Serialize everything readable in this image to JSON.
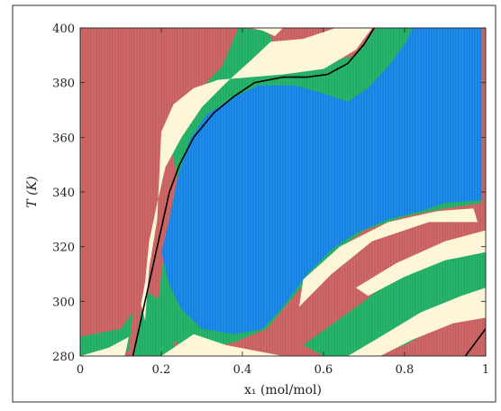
{
  "chart_data": {
    "type": "heatmap",
    "title": "",
    "xlabel": "x₁ (mol/mol)",
    "ylabel": "T (K)",
    "xlim": [
      0,
      1
    ],
    "ylim": [
      280,
      400
    ],
    "x_ticks": [
      0,
      0.2,
      0.4,
      0.6,
      0.8,
      1
    ],
    "x_tick_labels": [
      "0",
      "0.2",
      "0.4",
      "0.6",
      "0.8",
      "1"
    ],
    "y_ticks": [
      280,
      300,
      320,
      340,
      360,
      380,
      400
    ],
    "y_tick_labels": [
      "280",
      "300",
      "320",
      "340",
      "360",
      "380",
      "400"
    ],
    "grid": false,
    "legend": "none",
    "colors": {
      "region_red": "#c96060",
      "region_cream": "#fdf5d8",
      "region_green": "#1fae63",
      "region_blue": "#1683e4",
      "curve": "#000000"
    },
    "regions": {
      "red": [
        [
          [
            0,
            400
          ],
          [
            0.39,
            400
          ],
          [
            0.34,
            394
          ],
          [
            0.28,
            385
          ],
          [
            0.22,
            374
          ],
          [
            0.18,
            362
          ],
          [
            0.17,
            348
          ],
          [
            0.15,
            330
          ],
          [
            0.13,
            312
          ],
          [
            0.1,
            300
          ],
          [
            0.05,
            294
          ],
          [
            0,
            291
          ]
        ],
        [
          [
            0.38,
            284.5
          ],
          [
            0.43,
            285.2
          ],
          [
            0.46,
            284.6
          ],
          [
            0.42,
            283.6
          ]
        ],
        [
          [
            0.67,
            298.8
          ],
          [
            0.72,
            301.2
          ],
          [
            0.7,
            300
          ]
        ]
      ],
      "green": [
        [
          [
            0.39,
            400
          ],
          [
            0.46,
            399
          ],
          [
            0.48,
            394
          ],
          [
            0.52,
            389
          ],
          [
            0.6,
            387
          ],
          [
            0.68,
            390
          ],
          [
            0.72,
            398
          ],
          [
            0.73,
            400
          ],
          [
            0.98,
            400
          ],
          [
            0.99,
            336
          ],
          [
            0.9,
            334
          ],
          [
            0.8,
            331
          ],
          [
            0.7,
            326
          ],
          [
            0.62,
            317
          ],
          [
            0.55,
            306
          ],
          [
            0.46,
            290
          ],
          [
            0.38,
            285
          ],
          [
            0.28,
            282
          ],
          [
            0.22,
            286
          ],
          [
            0.19,
            296
          ],
          [
            0.2,
            310
          ],
          [
            0.22,
            330
          ],
          [
            0.24,
            345
          ],
          [
            0.22,
            360
          ],
          [
            0.26,
            372
          ],
          [
            0.35,
            386
          ]
        ],
        [
          [
            0.7,
            300
          ],
          [
            0.8,
            312
          ],
          [
            0.9,
            320
          ],
          [
            1,
            323
          ],
          [
            1,
            300
          ],
          [
            0.9,
            292
          ],
          [
            0.8,
            284
          ],
          [
            0.72,
            280
          ],
          [
            0.6,
            280
          ],
          [
            0.55,
            284
          ]
        ],
        [
          [
            0,
            287
          ],
          [
            0.1,
            290
          ],
          [
            0.13,
            296
          ],
          [
            0.12,
            282
          ],
          [
            0.05,
            280
          ],
          [
            0,
            280
          ]
        ],
        [
          [
            0.13,
            280
          ],
          [
            0.16,
            304
          ],
          [
            0.2,
            300
          ],
          [
            0.22,
            290
          ],
          [
            0.24,
            280
          ]
        ]
      ],
      "cream": [
        [
          [
            0.2,
            362
          ],
          [
            0.23,
            372
          ],
          [
            0.28,
            378
          ],
          [
            0.34,
            381
          ],
          [
            0.42,
            382
          ],
          [
            0.5,
            383
          ],
          [
            0.6,
            385
          ],
          [
            0.68,
            392
          ],
          [
            0.72,
            400
          ],
          [
            0.63,
            400
          ],
          [
            0.55,
            396
          ],
          [
            0.47,
            395
          ],
          [
            0.42,
            388
          ],
          [
            0.36,
            380
          ],
          [
            0.3,
            371
          ],
          [
            0.25,
            360
          ],
          [
            0.21,
            349
          ],
          [
            0.19,
            336
          ],
          [
            0.17,
            322
          ],
          [
            0.16,
            307
          ],
          [
            0.15,
            299
          ],
          [
            0.16,
            293
          ],
          [
            0.17,
            312
          ],
          [
            0.19,
            330
          ]
        ],
        [
          [
            0.42,
            400
          ],
          [
            0.5,
            400
          ],
          [
            0.48,
            397
          ],
          [
            0.45,
            399
          ]
        ],
        [
          [
            0.55,
            308
          ],
          [
            0.64,
            320
          ],
          [
            0.76,
            329
          ],
          [
            0.88,
            333
          ],
          [
            0.97,
            334
          ],
          [
            0.98,
            329
          ],
          [
            0.86,
            329
          ],
          [
            0.72,
            322
          ],
          [
            0.62,
            310
          ],
          [
            0.54,
            298
          ]
        ],
        [
          [
            0.68,
            305
          ],
          [
            0.78,
            314
          ],
          [
            0.9,
            322
          ],
          [
            1,
            326
          ],
          [
            1,
            318
          ],
          [
            0.9,
            315
          ],
          [
            0.8,
            309
          ],
          [
            0.71,
            302
          ]
        ],
        [
          [
            0.74,
            287
          ],
          [
            0.84,
            296
          ],
          [
            0.94,
            302
          ],
          [
            1,
            305
          ],
          [
            1,
            294
          ],
          [
            0.92,
            292
          ],
          [
            0.82,
            286
          ],
          [
            0.74,
            280
          ],
          [
            0.66,
            280
          ]
        ],
        [
          [
            0.2,
            280
          ],
          [
            0.28,
            288
          ],
          [
            0.36,
            284
          ],
          [
            0.5,
            280
          ]
        ],
        [
          [
            0,
            280
          ],
          [
            0.07,
            283
          ],
          [
            0.12,
            287
          ],
          [
            0.11,
            280
          ]
        ]
      ],
      "blue": [
        [
          [
            0.2,
            318
          ],
          [
            0.22,
            330
          ],
          [
            0.24,
            345
          ],
          [
            0.27,
            359
          ],
          [
            0.31,
            368
          ],
          [
            0.37,
            374
          ],
          [
            0.44,
            379
          ],
          [
            0.53,
            379
          ],
          [
            0.6,
            376
          ],
          [
            0.66,
            373
          ],
          [
            0.71,
            378
          ],
          [
            0.76,
            386
          ],
          [
            0.8,
            394
          ],
          [
            0.82,
            400
          ],
          [
            0.99,
            400
          ],
          [
            0.99,
            337
          ],
          [
            0.9,
            336
          ],
          [
            0.84,
            333
          ],
          [
            0.76,
            330
          ],
          [
            0.68,
            325
          ],
          [
            0.62,
            319
          ],
          [
            0.56,
            310
          ],
          [
            0.5,
            298
          ],
          [
            0.45,
            290
          ],
          [
            0.38,
            288
          ],
          [
            0.3,
            290
          ],
          [
            0.25,
            297
          ],
          [
            0.22,
            306
          ]
        ]
      ]
    },
    "curves": [
      [
        [
          0.13,
          280
        ],
        [
          0.145,
          290
        ],
        [
          0.16,
          300
        ],
        [
          0.175,
          310
        ],
        [
          0.19,
          320
        ],
        [
          0.205,
          330
        ],
        [
          0.22,
          340
        ],
        [
          0.245,
          350
        ],
        [
          0.28,
          360
        ],
        [
          0.33,
          369
        ],
        [
          0.38,
          375
        ],
        [
          0.43,
          380
        ],
        [
          0.5,
          382
        ],
        [
          0.56,
          382
        ],
        [
          0.61,
          383
        ],
        [
          0.66,
          387
        ],
        [
          0.7,
          394
        ],
        [
          0.725,
          400
        ]
      ],
      [
        [
          0.95,
          280
        ],
        [
          0.97,
          284
        ],
        [
          1,
          290
        ]
      ]
    ]
  }
}
